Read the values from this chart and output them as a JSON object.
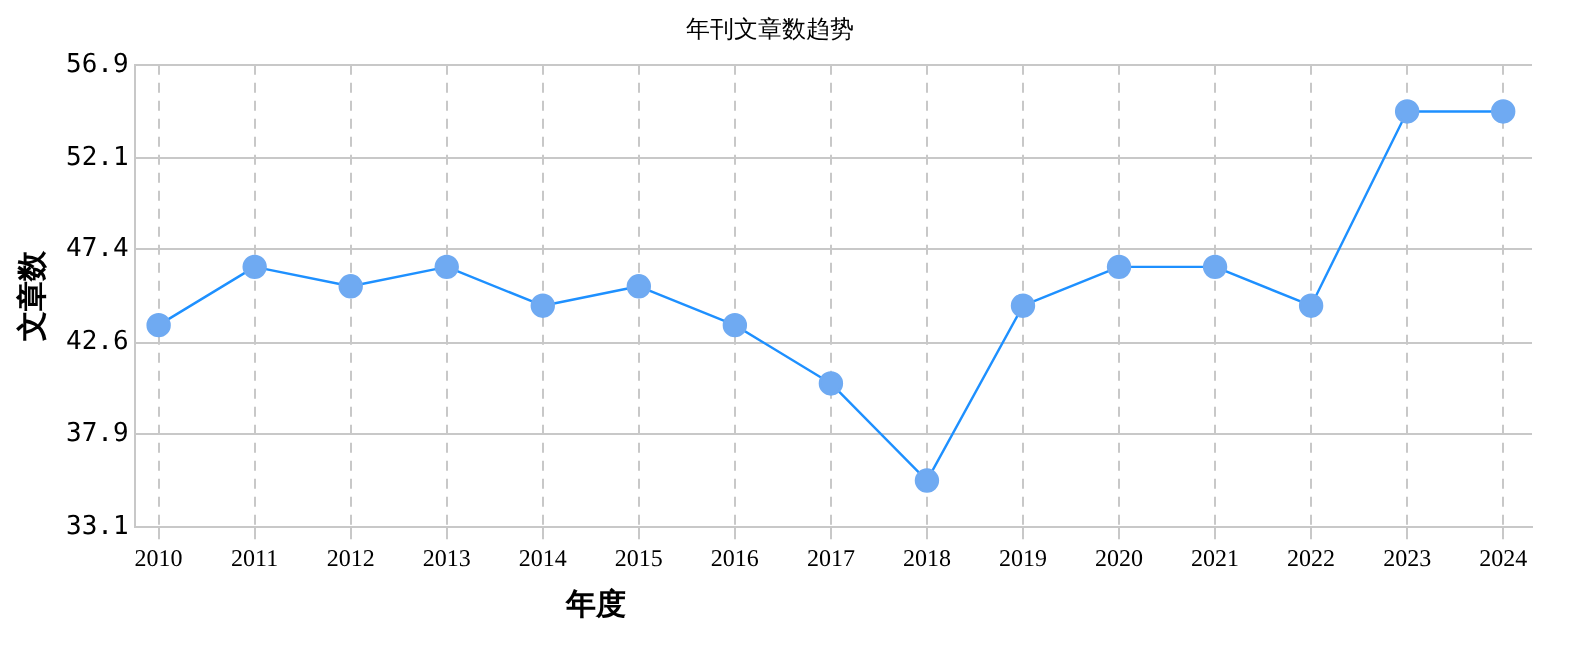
{
  "chart_data": {
    "type": "line",
    "title": "年刊文章数趋势",
    "xlabel": "年度",
    "ylabel": "文章数",
    "x": [
      2010,
      2011,
      2012,
      2013,
      2014,
      2015,
      2016,
      2017,
      2018,
      2019,
      2020,
      2021,
      2022,
      2023,
      2024
    ],
    "series": [
      {
        "color": "#1e90ff",
        "values": [
          43.5,
          46.5,
          45.5,
          46.5,
          44.5,
          45.5,
          43.5,
          40.5,
          35.5,
          44.5,
          46.5,
          46.5,
          44.5,
          54.5,
          54.5
        ]
      }
    ],
    "xlim": [
      2009.75,
      2024.3
    ],
    "xticks": [
      2010,
      2011,
      2012,
      2013,
      2014,
      2015,
      2016,
      2017,
      2018,
      2019,
      2020,
      2021,
      2022,
      2023,
      2024
    ],
    "ylim": [
      33.1,
      56.9
    ],
    "yticks": [
      33.1,
      37.9,
      42.6,
      47.4,
      52.1,
      56.9
    ],
    "grid": true,
    "marker": "circle",
    "line_style": "solid",
    "legend": false
  }
}
